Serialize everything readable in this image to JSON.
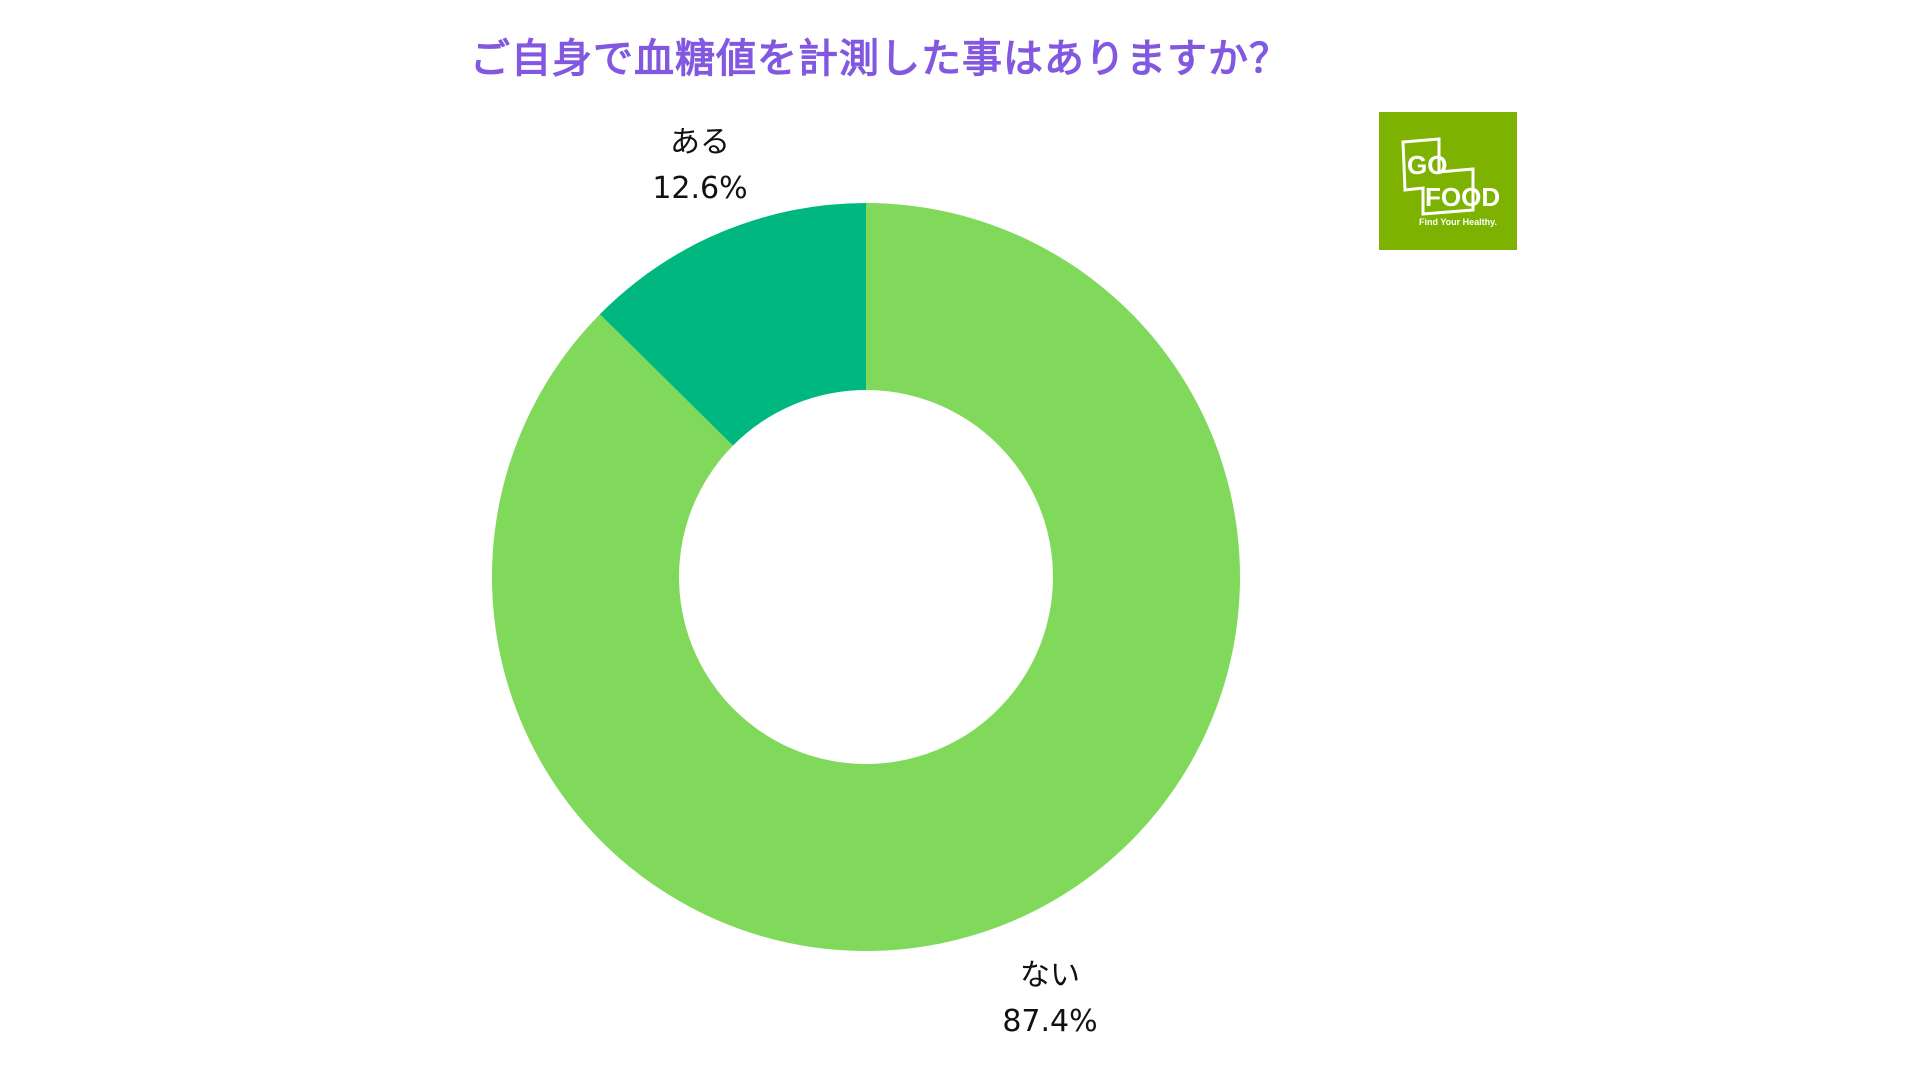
{
  "title": "ご自身で血糖値を計測した事はありますか？",
  "chart_data": {
    "type": "pie",
    "subtype": "donut",
    "title": "ご自身で血糖値を計測した事はありますか？",
    "categories": [
      "ない",
      "ある"
    ],
    "values": [
      87.4,
      12.6
    ],
    "unit": "%",
    "colors": [
      "#80d95a",
      "#00b87f"
    ],
    "start_angle_deg": 0,
    "direction": "clockwise",
    "legend": "none",
    "data_labels": [
      {
        "category": "ある",
        "value": "12.6%"
      },
      {
        "category": "ない",
        "value": "87.4%"
      }
    ]
  },
  "labels": {
    "aru": {
      "category": "ある",
      "percent": "12.6%"
    },
    "nai": {
      "category": "ない",
      "percent": "87.4%"
    }
  },
  "logo": {
    "line1": "GO",
    "line2": "FOOD",
    "tagline": "Find Your Healthy.",
    "bg_color": "#7db300"
  }
}
